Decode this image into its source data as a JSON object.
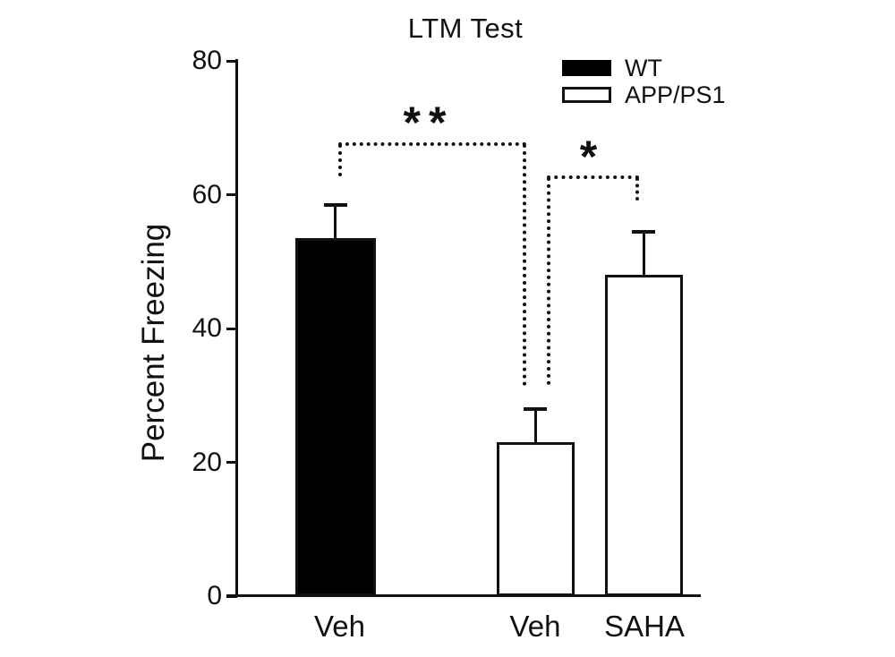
{
  "figure_title": "LTM Test",
  "chart_data": {
    "type": "bar",
    "title": "LTM Test",
    "xlabel": "",
    "ylabel": "Percent Freezing",
    "ylim": [
      0,
      80
    ],
    "yticks": [
      0,
      20,
      40,
      60,
      80
    ],
    "grid": false,
    "legend_position": "top-right",
    "categories": [
      "Veh",
      "Veh",
      "SAHA"
    ],
    "bars": [
      {
        "category": "Veh",
        "group": "WT",
        "value": 53.5,
        "error": 5,
        "fill": "#000000"
      },
      {
        "category": "Veh",
        "group": "APP/PS1",
        "value": 23,
        "error": 5,
        "fill": "#ffffff"
      },
      {
        "category": "SAHA",
        "group": "APP/PS1",
        "value": 48,
        "error": 6.5,
        "fill": "#ffffff"
      }
    ],
    "legend": [
      {
        "label": "WT",
        "fill": "#000000"
      },
      {
        "label": "APP/PS1",
        "fill": "#ffffff"
      }
    ],
    "significance": [
      {
        "label": "**",
        "between": [
          "Veh (WT)",
          "Veh (APP/PS1)"
        ]
      },
      {
        "label": "*",
        "between": [
          "Veh (APP/PS1)",
          "SAHA (APP/PS1)"
        ]
      }
    ],
    "colors": {
      "ink": "#111111",
      "background": "#ffffff"
    }
  }
}
